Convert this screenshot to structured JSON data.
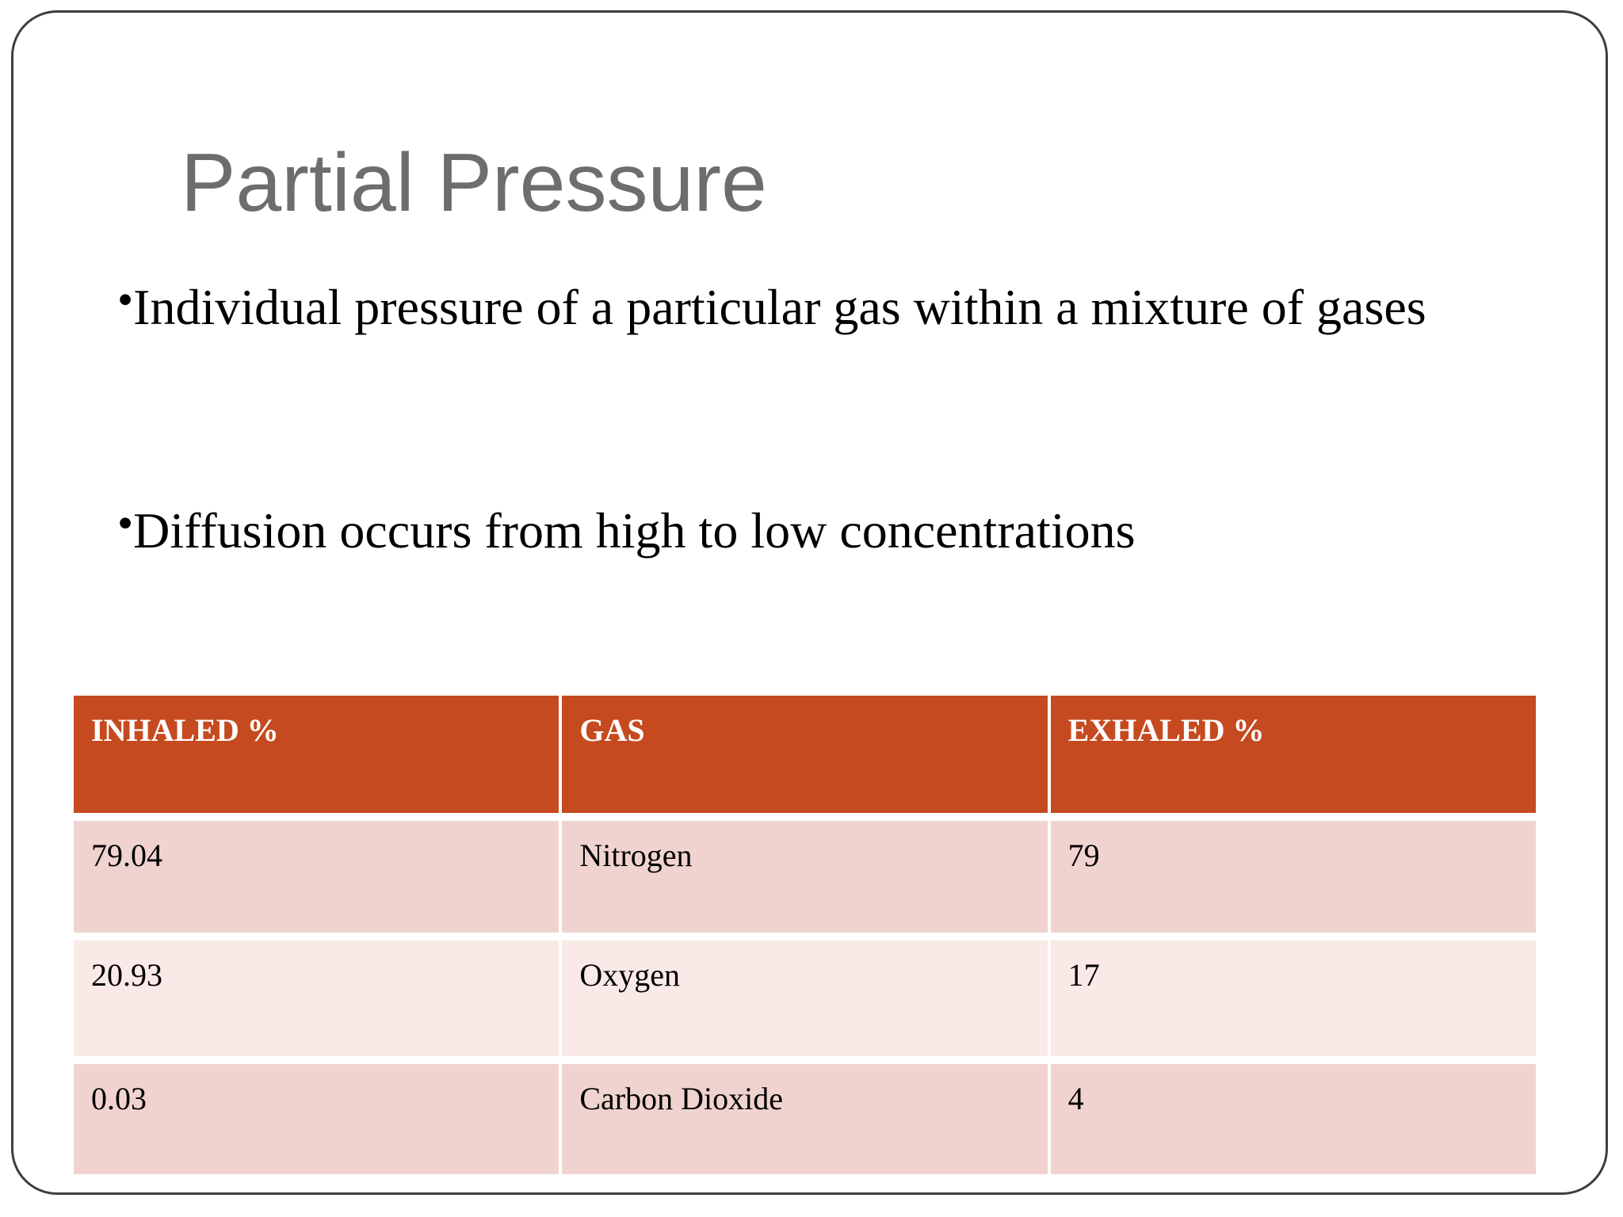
{
  "slide": {
    "title": "Partial Pressure",
    "bullet_char": "•",
    "bullets": [
      "Individual pressure of a particular gas within a mixture of gases",
      "Diffusion occurs from high to low concentrations"
    ],
    "table": {
      "headers": [
        "INHALED %",
        "GAS",
        "EXHALED %"
      ],
      "rows": [
        [
          "79.04",
          "Nitrogen",
          "79"
        ],
        [
          "20.93",
          "Oxygen",
          "17"
        ],
        [
          "0.03",
          "Carbon Dioxide",
          "4"
        ]
      ]
    },
    "colors": {
      "header_bg": "#C64A1F",
      "header_text": "#FFFFFF",
      "row_odd_bg": "#F0D3CF",
      "row_even_bg": "#F9E9E7",
      "title_color": "#6D6D6D",
      "body_text": "#000000",
      "border_color": "#3E3E3E"
    }
  }
}
